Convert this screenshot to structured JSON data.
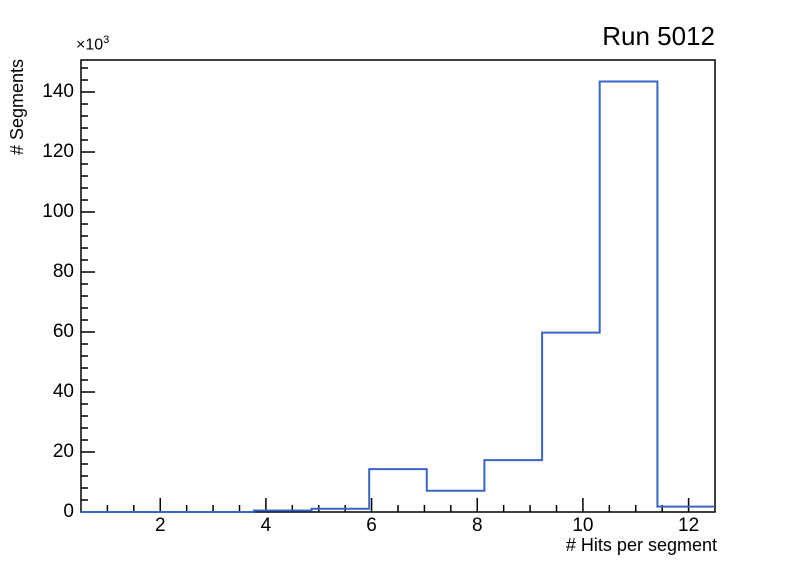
{
  "title": "Run 5012",
  "axes": {
    "x": {
      "label": "# Hits per segment",
      "tick_labels": [
        "2",
        "4",
        "6",
        "8",
        "10",
        "12"
      ],
      "tick_values": [
        2,
        4,
        6,
        8,
        10,
        12
      ],
      "minor_tick_step": 0.5,
      "min": 0.5,
      "max": 12.5
    },
    "y": {
      "label": "# Segments",
      "multiplier_base": "×10",
      "multiplier_exponent": "3",
      "tick_labels": [
        "0",
        "20",
        "40",
        "60",
        "80",
        "100",
        "120",
        "140"
      ],
      "tick_values": [
        0,
        20000,
        40000,
        60000,
        80000,
        100000,
        120000,
        140000
      ],
      "minor_tick_step": 4000,
      "min": 0,
      "max": 150675
    }
  },
  "chart_data": {
    "type": "histogram-step",
    "title": "Run 5012",
    "xlabel": "# Hits per segment",
    "ylabel": "# Segments",
    "y_axis_multiplier": "×10^3",
    "xlim": [
      0.5,
      12.5
    ],
    "ylim": [
      0,
      150675
    ],
    "grid": false,
    "bin_edges": [
      0.5,
      1.591,
      2.682,
      3.773,
      4.864,
      5.955,
      7.045,
      8.136,
      9.227,
      10.318,
      11.409,
      12.5
    ],
    "counts": [
      0,
      0,
      0,
      500,
      1100,
      14300,
      7100,
      17300,
      59800,
      143500,
      1800
    ],
    "line_color": "#3866c8"
  },
  "colors": {
    "background": "#ffffff",
    "frame": "#000000",
    "text": "#000000",
    "histogram_line": "#3866c8"
  }
}
